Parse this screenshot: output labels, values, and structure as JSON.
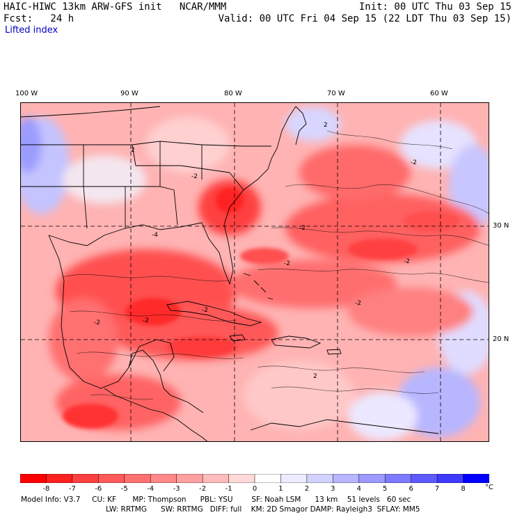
{
  "header": {
    "title_left": "HAIC-HIWC 13km ARW-GFS init   NCAR/MMM",
    "init_right": "Init: 00 UTC Thu 03 Sep 15",
    "fcst_left": "Fcst:   24 h",
    "valid_right": "Valid: 00 UTC Fri 04 Sep 15 (22 LDT Thu 03 Sep 15)",
    "field_name": "Lifted index"
  },
  "map": {
    "longitude_labels": [
      "100 W",
      "90 W",
      "80 W",
      "70 W",
      "60 W"
    ],
    "latitude_labels": [
      "30 N",
      "20 N"
    ],
    "contour_labels": [
      "2",
      "2",
      "-2",
      "-2",
      "-2",
      "-4",
      "-2",
      "-2",
      "2",
      "-2",
      "-2",
      "-2",
      "-2"
    ]
  },
  "colorbar": {
    "ticks": [
      "-8",
      "-7",
      "-6",
      "-5",
      "-4",
      "-3",
      "-2",
      "-1",
      "0",
      "1",
      "2",
      "3",
      "4",
      "5",
      "6",
      "7",
      "8"
    ],
    "unit": "°C",
    "colors": [
      "#ff0000",
      "#ff2020",
      "#ff4040",
      "#ff5a5a",
      "#ff7070",
      "#ff8888",
      "#ffa0a0",
      "#ffbcbc",
      "#ffd8d8",
      "#ffffff",
      "#ecebff",
      "#d4d2ff",
      "#b8b6ff",
      "#9c9aff",
      "#7d7aff",
      "#5e5aff",
      "#3e3aff",
      "#0000ff"
    ]
  },
  "model_info": {
    "line1": "Model Info: V3.7     CU: KF       MP: Thompson      PBL: YSU        SF: Noah LSM      13 km    51 levels   60 sec",
    "line2": "LW: RRTMG      SW: RRTMG   DIFF: full    KM: 2D Smagor DAMP: Rayleigh3  SFLAY: MM5"
  }
}
